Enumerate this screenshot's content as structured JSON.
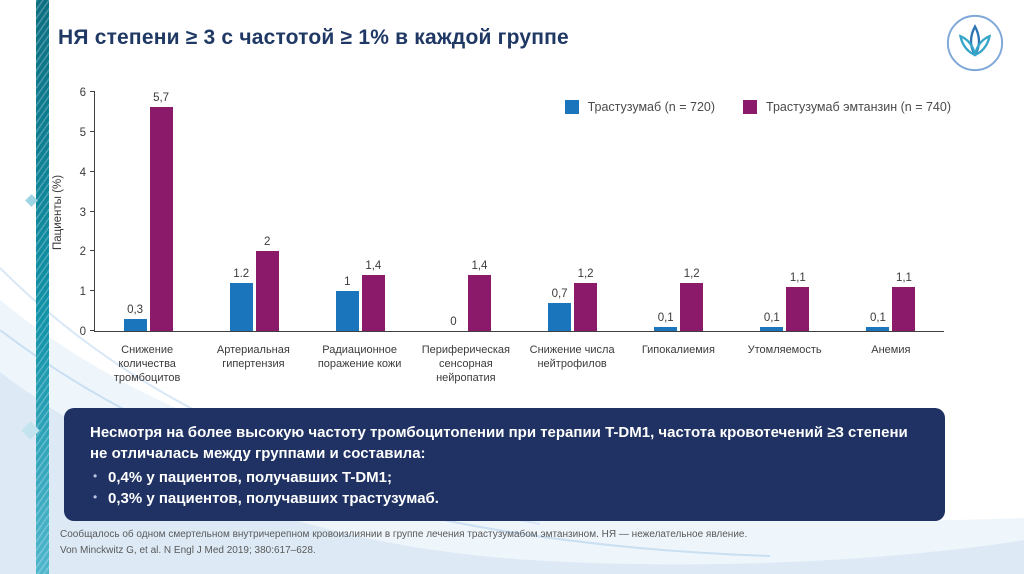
{
  "slide": {
    "title": "НЯ степени ≥ 3 с частотой ≥ 1% в каждой группе",
    "footnote": "Сообщалось об одном смертельном внутричерепном кровоизлиянии в группе лечения трастузумабом эмтанзином. НЯ — нежелательное явление.",
    "citation": "Von Minckwitz G, et al. N Engl J Med 2019; 380:617–628."
  },
  "callout": {
    "intro": "Несмотря на более высокую частоту тромбоцитопении при терапии T-DM1, частота кровотечений ≥3 степени не отличалась между группами и составила:",
    "bullets": [
      "0,4% у пациентов, получавших T-DM1;",
      "0,3% у пациентов, получавших трастузумаб."
    ]
  },
  "colors": {
    "title": "#1f3864",
    "callout_bg": "#1f3263",
    "bar_blue": "#1b75bc",
    "bar_purple": "#8b1a6b",
    "strip_teal": "#1193a8"
  },
  "chart_data": {
    "type": "bar",
    "title": "",
    "xlabel": "",
    "ylabel": "Пациенты (%)",
    "ylim": [
      0,
      6
    ],
    "yticks": [
      0,
      1,
      2,
      3,
      4,
      5,
      6
    ],
    "grid": false,
    "legend_position": "top-right",
    "categories": [
      "Снижение количества тромбоцитов",
      "Артериальная гипертензия",
      "Радиационное поражение кожи",
      "Периферическая сенсорная нейропатия",
      "Снижение числа нейтрофилов",
      "Гипокалиемия",
      "Утомляемость",
      "Анемия"
    ],
    "series": [
      {
        "name": "Трастузумаб (n = 720)",
        "key": "trastuzumab",
        "color": "#1b75bc",
        "values": [
          0.3,
          1.2,
          1,
          0,
          0.7,
          0.1,
          0.1,
          0.1
        ],
        "labels": [
          "0,3",
          "1.2",
          "1",
          "0",
          "0,7",
          "0,1",
          "0,1",
          "0,1"
        ]
      },
      {
        "name": "Трастузумаб эмтанзин (n = 740)",
        "key": "trastuzumab-emtansine",
        "color": "#8b1a6b",
        "values": [
          5.7,
          2,
          1.4,
          1.4,
          1.2,
          1.2,
          1.1,
          1.1
        ],
        "labels": [
          "5,7",
          "2",
          "1,4",
          "1,4",
          "1,2",
          "1,2",
          "1,1",
          "1,1"
        ]
      }
    ]
  }
}
